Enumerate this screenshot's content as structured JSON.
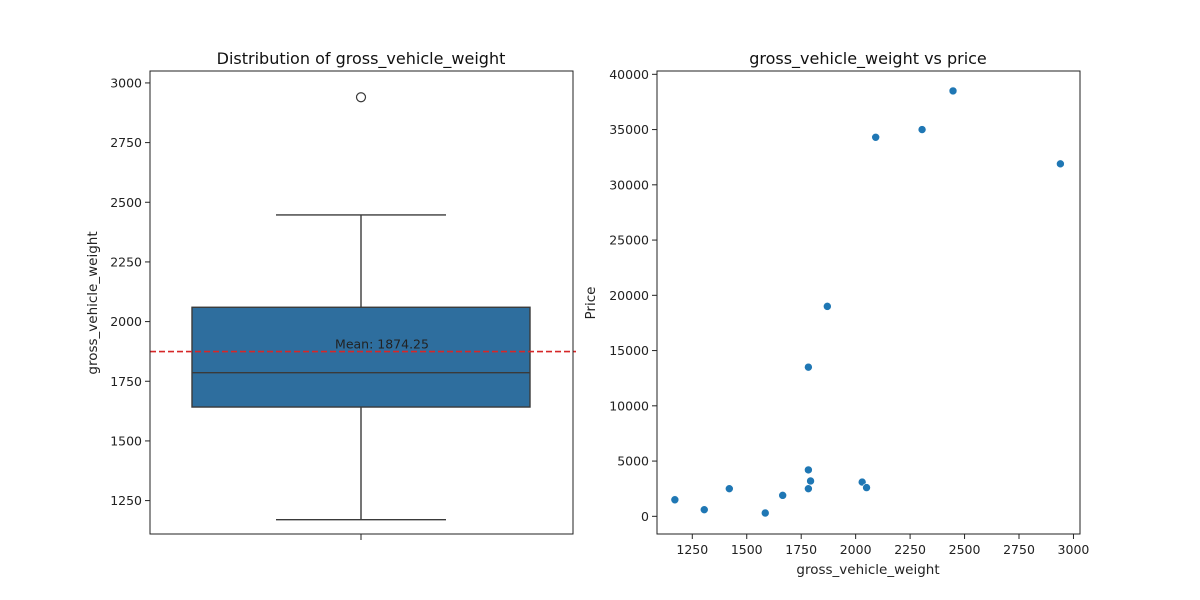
{
  "chart_data": [
    {
      "type": "box",
      "title": "Distribution of gross_vehicle_weight",
      "xlabel": "",
      "ylabel": "gross_vehicle_weight",
      "ylim": [
        1110,
        3050
      ],
      "yticks": [
        1250,
        1500,
        1750,
        2000,
        2250,
        2500,
        2750,
        3000
      ],
      "box": {
        "whisker_low": 1170,
        "q1": 1642,
        "median": 1786,
        "q3": 2060,
        "whisker_high": 2447,
        "outliers": [
          2940
        ],
        "color": "#2e6e9e"
      },
      "mean": {
        "value": 1874.25,
        "label": "Mean: 1874.25",
        "color": "#d62728"
      },
      "grid": false
    },
    {
      "type": "scatter",
      "title": "gross_vehicle_weight vs price",
      "xlabel": "gross_vehicle_weight",
      "ylabel": "Price",
      "xlim": [
        1088,
        3030
      ],
      "ylim": [
        -1600,
        40300
      ],
      "xticks": [
        1250,
        1500,
        1750,
        2000,
        2250,
        2500,
        2750,
        3000
      ],
      "yticks": [
        0,
        5000,
        10000,
        15000,
        20000,
        25000,
        30000,
        35000,
        40000
      ],
      "color": "#1f77b4",
      "points": [
        {
          "x": 1170,
          "y": 1500
        },
        {
          "x": 1305,
          "y": 600
        },
        {
          "x": 1420,
          "y": 2500
        },
        {
          "x": 1585,
          "y": 300
        },
        {
          "x": 1665,
          "y": 1900
        },
        {
          "x": 1783,
          "y": 13500
        },
        {
          "x": 1783,
          "y": 4200
        },
        {
          "x": 1783,
          "y": 2500
        },
        {
          "x": 1793,
          "y": 3200
        },
        {
          "x": 1870,
          "y": 19000
        },
        {
          "x": 2030,
          "y": 3100
        },
        {
          "x": 2050,
          "y": 2600
        },
        {
          "x": 2092,
          "y": 34300
        },
        {
          "x": 2305,
          "y": 35000
        },
        {
          "x": 2447,
          "y": 38500
        },
        {
          "x": 2940,
          "y": 31900
        }
      ],
      "grid": false
    }
  ]
}
